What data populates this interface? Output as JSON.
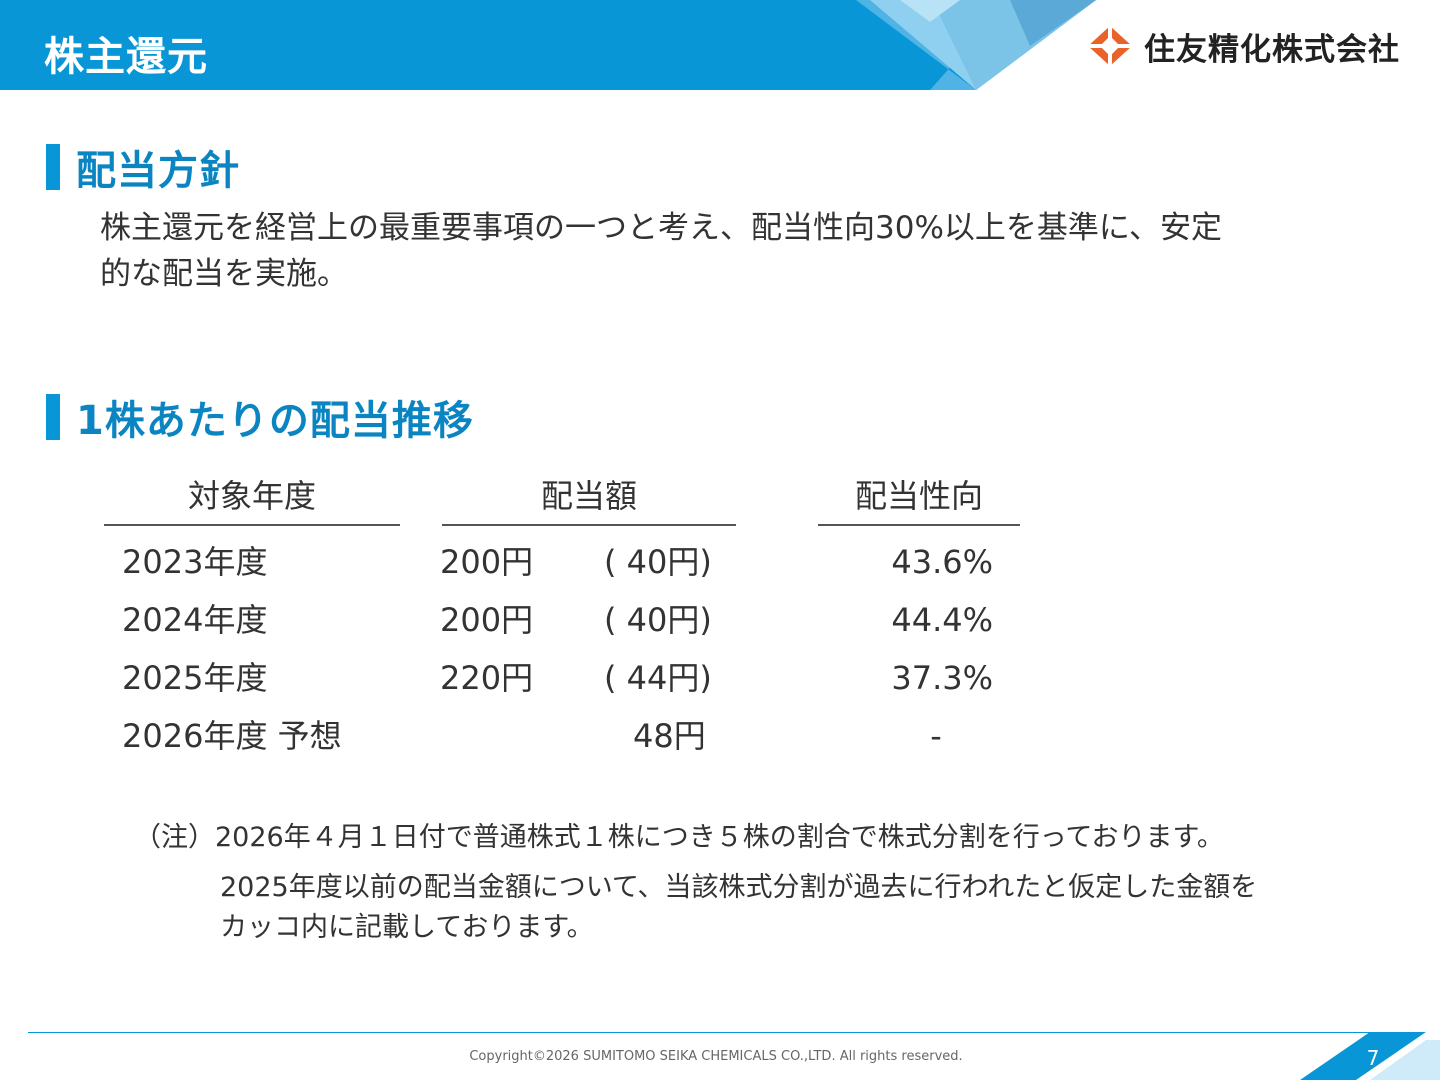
{
  "header": {
    "title": "株主還元",
    "company_name": "住友精化株式会社",
    "colors": {
      "primary": "#0896d6",
      "light": "#7cc3e8",
      "accent": "#e8622a"
    }
  },
  "policy_section": {
    "heading": "配当方針",
    "lines": [
      "株主還元を経営上の最重要事項の一つと考え、配当性向30%以上を基準に、安定",
      "的な配当を実施。"
    ]
  },
  "dividend_section": {
    "heading": "1株あたりの配当推移",
    "columns": [
      "対象年度",
      "配当額",
      "配当性向"
    ],
    "rows": [
      {
        "year": "2023年度",
        "amount": "200円",
        "adjusted": "( 40円)",
        "payout": "43.6%"
      },
      {
        "year": "2024年度",
        "amount": "200円",
        "adjusted": "( 40円)",
        "payout": "44.4%"
      },
      {
        "year": "2025年度",
        "amount": "220円",
        "adjusted": "( 44円)",
        "payout": "37.3%"
      },
      {
        "year": "2026年度 予想",
        "amount": "48円",
        "adjusted": "",
        "payout": "-"
      }
    ],
    "notes": [
      "（注）2026年４月１日付で普通株式１株につき５株の割合で株式分割を行っております。",
      "2025年度以前の配当金額について、当該株式分割が過去に行われたと仮定した金額を",
      "カッコ内に記載しております。"
    ]
  },
  "footer": {
    "copyright": "Copyright©2026 SUMITOMO SEIKA CHEMICALS CO.,LTD.  All rights reserved.",
    "page_number": "7"
  }
}
